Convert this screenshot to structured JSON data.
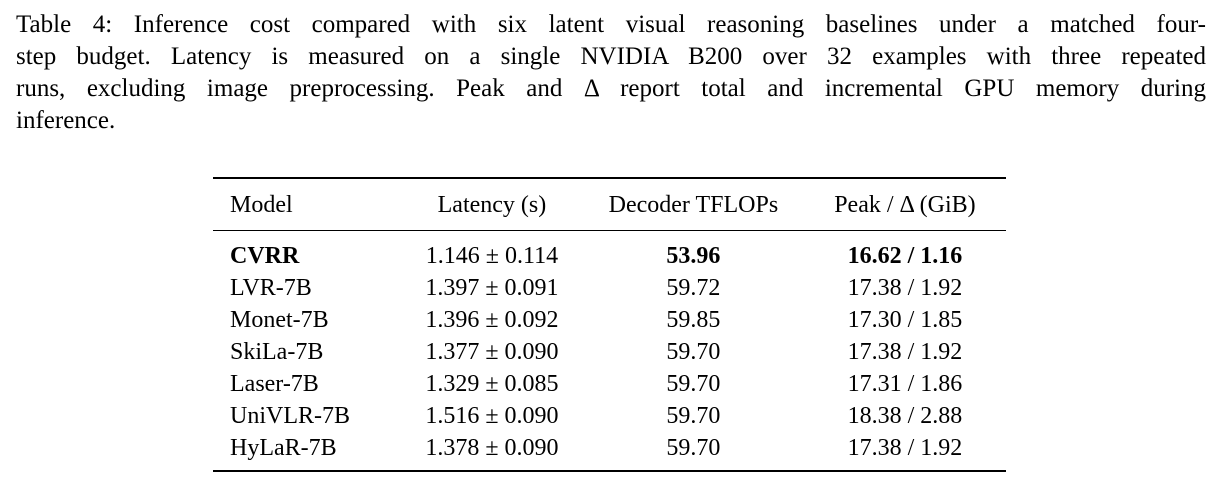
{
  "caption": {
    "lines": [
      "Table 4: Inference cost compared with six latent visual reasoning baselines under a matched four-",
      "step budget. Latency is measured on a single NVIDIA B200 over 32 examples with three repeated",
      "runs, excluding image preprocessing. Peak and Δ report total and incremental GPU memory during",
      "inference."
    ]
  },
  "table": {
    "headers": {
      "model": "Model",
      "latency": "Latency (s)",
      "tflops": "Decoder TFLOPs",
      "peak": "Peak / Δ (GiB)"
    },
    "rows": [
      {
        "model": "CVRR",
        "latency": "1.146 ± 0.114",
        "tflops": "53.96",
        "peak": "16.62 / 1.16"
      },
      {
        "model": "LVR-7B",
        "latency": "1.397 ± 0.091",
        "tflops": "59.72",
        "peak": "17.38 / 1.92"
      },
      {
        "model": "Monet-7B",
        "latency": "1.396 ± 0.092",
        "tflops": "59.85",
        "peak": "17.30 / 1.85"
      },
      {
        "model": "SkiLa-7B",
        "latency": "1.377 ± 0.090",
        "tflops": "59.70",
        "peak": "17.38 / 1.92"
      },
      {
        "model": "Laser-7B",
        "latency": "1.329 ± 0.085",
        "tflops": "59.70",
        "peak": "17.31 / 1.86"
      },
      {
        "model": "UniVLR-7B",
        "latency": "1.516 ± 0.090",
        "tflops": "59.70",
        "peak": "18.38 / 2.88"
      },
      {
        "model": "HyLaR-7B",
        "latency": "1.378 ± 0.090",
        "tflops": "59.70",
        "peak": "17.38 / 1.92"
      }
    ]
  }
}
